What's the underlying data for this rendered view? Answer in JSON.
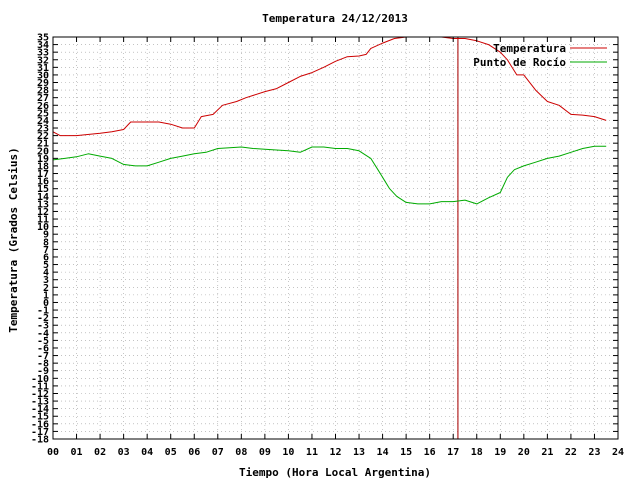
{
  "chart_data": {
    "type": "line",
    "title": "Temperatura 24/12/2013",
    "xlabel": "Tiempo (Hora Local Argentina)",
    "ylabel": "Temperatura (Grados Celsius)",
    "xlim": [
      0,
      24
    ],
    "ylim": [
      -18,
      35
    ],
    "x_ticks": [
      "00",
      "01",
      "02",
      "03",
      "04",
      "05",
      "06",
      "07",
      "08",
      "09",
      "10",
      "11",
      "12",
      "13",
      "14",
      "15",
      "16",
      "17",
      "18",
      "19",
      "20",
      "21",
      "22",
      "23",
      "24"
    ],
    "y_ticks": [
      35,
      34,
      33,
      32,
      31,
      30,
      29,
      28,
      27,
      26,
      25,
      24,
      23,
      22,
      21,
      20,
      19,
      18,
      17,
      16,
      15,
      14,
      13,
      12,
      11,
      10,
      9,
      8,
      7,
      6,
      5,
      4,
      3,
      2,
      1,
      0,
      -1,
      -2,
      -3,
      -4,
      -5,
      -6,
      -7,
      -8,
      -9,
      -10,
      -11,
      -12,
      -13,
      -14,
      -15,
      -16,
      -17,
      -18
    ],
    "grid": true,
    "legend_position": "top-right",
    "marker_x": 17.2,
    "marker_color": "#b22222",
    "series": [
      {
        "name": "Temperatura",
        "color": "#cc0000",
        "x": [
          0,
          0.3,
          1,
          2,
          2.5,
          3,
          3.3,
          4,
          4.5,
          5,
          5.5,
          6,
          6.3,
          6.8,
          7.2,
          7.8,
          8.2,
          9,
          9.5,
          10,
          10.5,
          11,
          11.5,
          12,
          12.5,
          13,
          13.3,
          13.5,
          14,
          14.5,
          15,
          15.5,
          16,
          16.5,
          17,
          17.5,
          18,
          18.5,
          19,
          19.3,
          19.7,
          20,
          20.5,
          21,
          21.5,
          22,
          22.5,
          23,
          23.5
        ],
        "y": [
          22.5,
          22.0,
          22.0,
          22.3,
          22.5,
          22.8,
          23.8,
          23.8,
          23.8,
          23.5,
          23.0,
          23.0,
          24.5,
          24.8,
          26.0,
          26.5,
          27.0,
          27.8,
          28.2,
          29.0,
          29.8,
          30.3,
          31.0,
          31.8,
          32.4,
          32.5,
          32.7,
          33.5,
          34.2,
          34.8,
          35.0,
          35.0,
          35.0,
          35.0,
          34.8,
          34.8,
          34.5,
          34.0,
          33.0,
          32.0,
          30.0,
          30.0,
          28.0,
          26.5,
          26.0,
          24.8,
          24.7,
          24.5,
          24.0
        ]
      },
      {
        "name": "Punto de Rocío",
        "color": "#00aa00",
        "x": [
          0,
          0.5,
          1,
          1.5,
          2,
          2.5,
          3,
          3.5,
          4,
          4.5,
          5,
          5.5,
          6,
          6.5,
          7,
          7.5,
          8,
          8.5,
          9,
          9.5,
          10,
          10.5,
          11,
          11.5,
          12,
          12.5,
          13,
          13.5,
          13.8,
          14,
          14.3,
          14.6,
          15,
          15.5,
          16,
          16.5,
          17,
          17.5,
          18,
          18.5,
          19,
          19.3,
          19.6,
          20,
          20.5,
          21,
          21.5,
          22,
          22.5,
          23,
          23.5
        ],
        "y": [
          18.8,
          19.0,
          19.2,
          19.6,
          19.3,
          19.0,
          18.2,
          18.0,
          18.0,
          18.5,
          19.0,
          19.3,
          19.6,
          19.8,
          20.3,
          20.4,
          20.5,
          20.3,
          20.2,
          20.1,
          20.0,
          19.8,
          20.5,
          20.5,
          20.3,
          20.3,
          20.0,
          19.0,
          17.5,
          16.5,
          15.0,
          14.0,
          13.2,
          13.0,
          13.0,
          13.3,
          13.3,
          13.5,
          13.0,
          13.8,
          14.5,
          16.5,
          17.5,
          18.0,
          18.5,
          19.0,
          19.3,
          19.8,
          20.3,
          20.6,
          20.6
        ]
      }
    ]
  }
}
